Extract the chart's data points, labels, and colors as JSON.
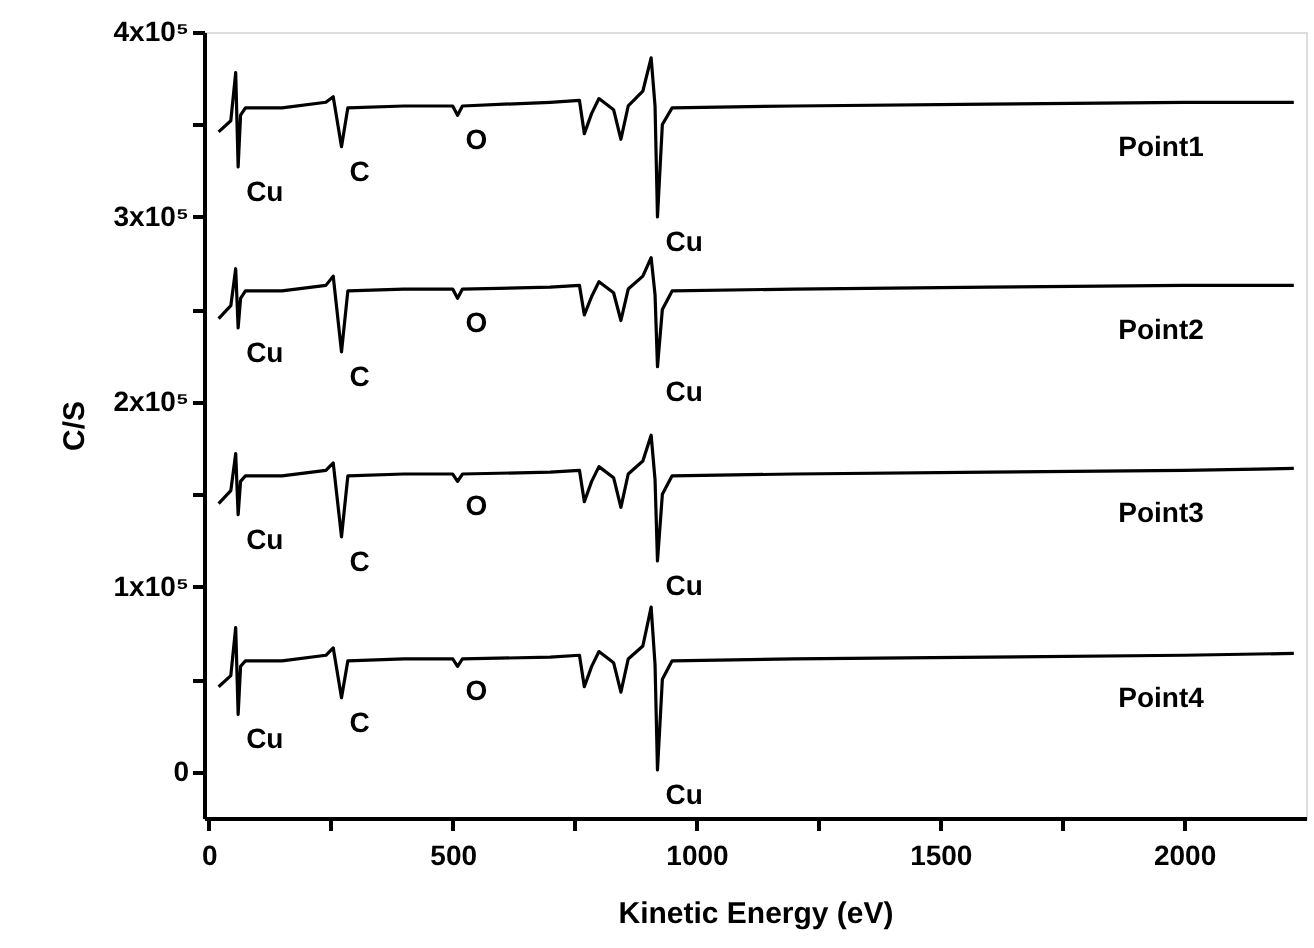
{
  "chart_data": {
    "type": "line",
    "xlabel": "Kinetic Energy (eV)",
    "ylabel": "C/S",
    "x": [
      20,
      45,
      55,
      60,
      65,
      75,
      150,
      240,
      255,
      272,
      285,
      400,
      500,
      510,
      520,
      700,
      760,
      770,
      785,
      800,
      830,
      845,
      860,
      890,
      907,
      915,
      920,
      930,
      950,
      1200,
      1600,
      2000,
      2225
    ],
    "series": [
      {
        "name": "Point1",
        "color": "#000000",
        "values": [
          346000,
          352000,
          378000,
          327000,
          355000,
          359000,
          359000,
          362000,
          365000,
          338000,
          359000,
          360000,
          360000,
          355000,
          360000,
          362000,
          363000,
          345000,
          356000,
          364000,
          358000,
          342000,
          360000,
          368000,
          386000,
          360000,
          300000,
          350000,
          359000,
          360000,
          361000,
          362000,
          362000
        ]
      },
      {
        "name": "Point2",
        "color": "#000000",
        "values": [
          245000,
          252000,
          272000,
          240000,
          256000,
          260000,
          260000,
          263000,
          268000,
          227000,
          260000,
          261000,
          261000,
          256000,
          261000,
          262000,
          263000,
          247000,
          257000,
          265000,
          259000,
          244000,
          261000,
          268000,
          278000,
          258000,
          219000,
          250000,
          260000,
          261000,
          262000,
          263000,
          263000
        ]
      },
      {
        "name": "Point3",
        "color": "#000000",
        "values": [
          145000,
          152000,
          172000,
          139000,
          157000,
          160000,
          160000,
          163000,
          167000,
          127000,
          160000,
          161000,
          161000,
          157000,
          161000,
          162000,
          163000,
          146000,
          157000,
          165000,
          159000,
          143000,
          161000,
          168000,
          182000,
          158000,
          114000,
          150000,
          160000,
          161000,
          162000,
          163000,
          164000
        ]
      },
      {
        "name": "Point4",
        "color": "#000000",
        "values": [
          46000,
          52000,
          78000,
          31000,
          57000,
          60000,
          60000,
          63000,
          67000,
          40000,
          60000,
          61000,
          61000,
          57000,
          61000,
          62000,
          63000,
          46000,
          57000,
          65000,
          59000,
          43000,
          61000,
          68000,
          89000,
          58000,
          1000,
          50000,
          60000,
          61000,
          62000,
          63000,
          64000
        ]
      }
    ],
    "annotations": [
      {
        "text": "Cu",
        "x": 60,
        "y": 327000
      },
      {
        "text": "C",
        "x": 272,
        "y": 338000
      },
      {
        "text": "O",
        "x": 510,
        "y": 355000
      },
      {
        "text": "Cu",
        "x": 920,
        "y": 300000
      },
      {
        "text": "Cu",
        "x": 60,
        "y": 240000
      },
      {
        "text": "C",
        "x": 272,
        "y": 227000
      },
      {
        "text": "O",
        "x": 510,
        "y": 256000
      },
      {
        "text": "Cu",
        "x": 920,
        "y": 219000
      },
      {
        "text": "Cu",
        "x": 60,
        "y": 139000
      },
      {
        "text": "C",
        "x": 272,
        "y": 127000
      },
      {
        "text": "O",
        "x": 510,
        "y": 157000
      },
      {
        "text": "Cu",
        "x": 920,
        "y": 114000
      },
      {
        "text": "Cu",
        "x": 60,
        "y": 31000
      },
      {
        "text": "C",
        "x": 272,
        "y": 40000
      },
      {
        "text": "O",
        "x": 510,
        "y": 57000
      },
      {
        "text": "Cu",
        "x": 920,
        "y": 1000
      }
    ],
    "xlim": [
      -10,
      2250
    ],
    "xticks": [
      0,
      {
        "value": 250,
        "label": null
      },
      500,
      {
        "value": 750,
        "label": null
      },
      1000,
      {
        "value": 1250,
        "label": null
      },
      1500,
      {
        "value": 1750,
        "label": null
      },
      2000
    ],
    "ylim": [
      -25000,
      400000
    ],
    "yticks": [
      {
        "value": 0,
        "label": "0"
      },
      {
        "value": 50000,
        "label": null
      },
      {
        "value": 100000,
        "label": "1x10⁵"
      },
      {
        "value": 150000,
        "label": null
      },
      {
        "value": 200000,
        "label": "2x10⁵"
      },
      {
        "value": 250000,
        "label": null
      },
      {
        "value": 300000,
        "label": "3x10⁵"
      },
      {
        "value": 350000,
        "label": null
      },
      {
        "value": 400000,
        "label": "4x10⁵"
      }
    ],
    "grid": false,
    "marker": "none",
    "line_style": "solid"
  }
}
